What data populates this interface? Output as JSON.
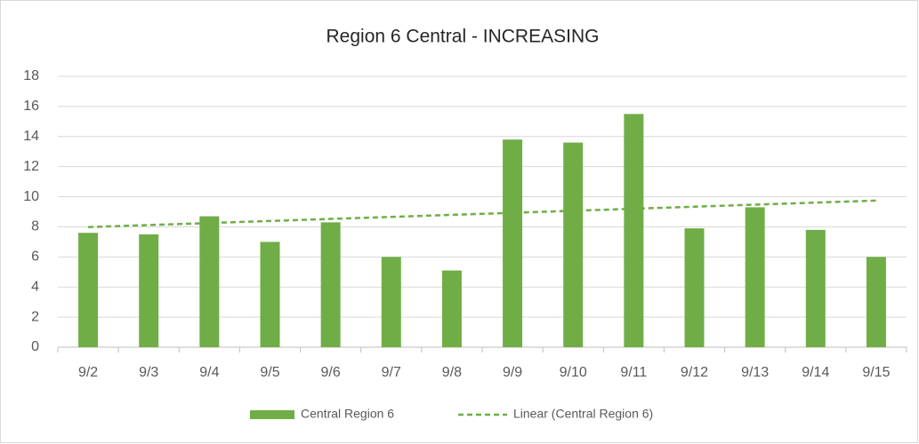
{
  "chart_data": {
    "type": "bar",
    "title": "Region 6 Central - INCREASING",
    "categories": [
      "9/2",
      "9/3",
      "9/4",
      "9/5",
      "9/6",
      "9/7",
      "9/8",
      "9/9",
      "9/10",
      "9/11",
      "9/12",
      "9/13",
      "9/14",
      "9/15"
    ],
    "series": [
      {
        "name": "Central Region 6",
        "color": "#70ad47",
        "values": [
          7.6,
          7.5,
          8.7,
          7.0,
          8.3,
          6.0,
          5.1,
          13.8,
          13.6,
          15.5,
          7.9,
          9.3,
          7.8,
          6.0
        ]
      }
    ],
    "trendline": {
      "name": "Linear (Central Region 6)",
      "type": "linear",
      "color": "#70ad47",
      "dashed": true
    },
    "ylim": [
      0,
      18
    ],
    "yticks": [
      0,
      2,
      4,
      6,
      8,
      10,
      12,
      14,
      16,
      18
    ],
    "grid": true,
    "legend": "bottom"
  }
}
